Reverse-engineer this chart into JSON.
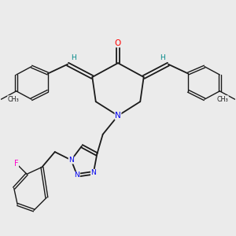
{
  "bg_color": "#ebebeb",
  "bond_color": "#1a1a1a",
  "atom_colors": {
    "O": "#ff0000",
    "N": "#0000ee",
    "F": "#ff00cc",
    "H": "#008888",
    "C": "#1a1a1a"
  }
}
